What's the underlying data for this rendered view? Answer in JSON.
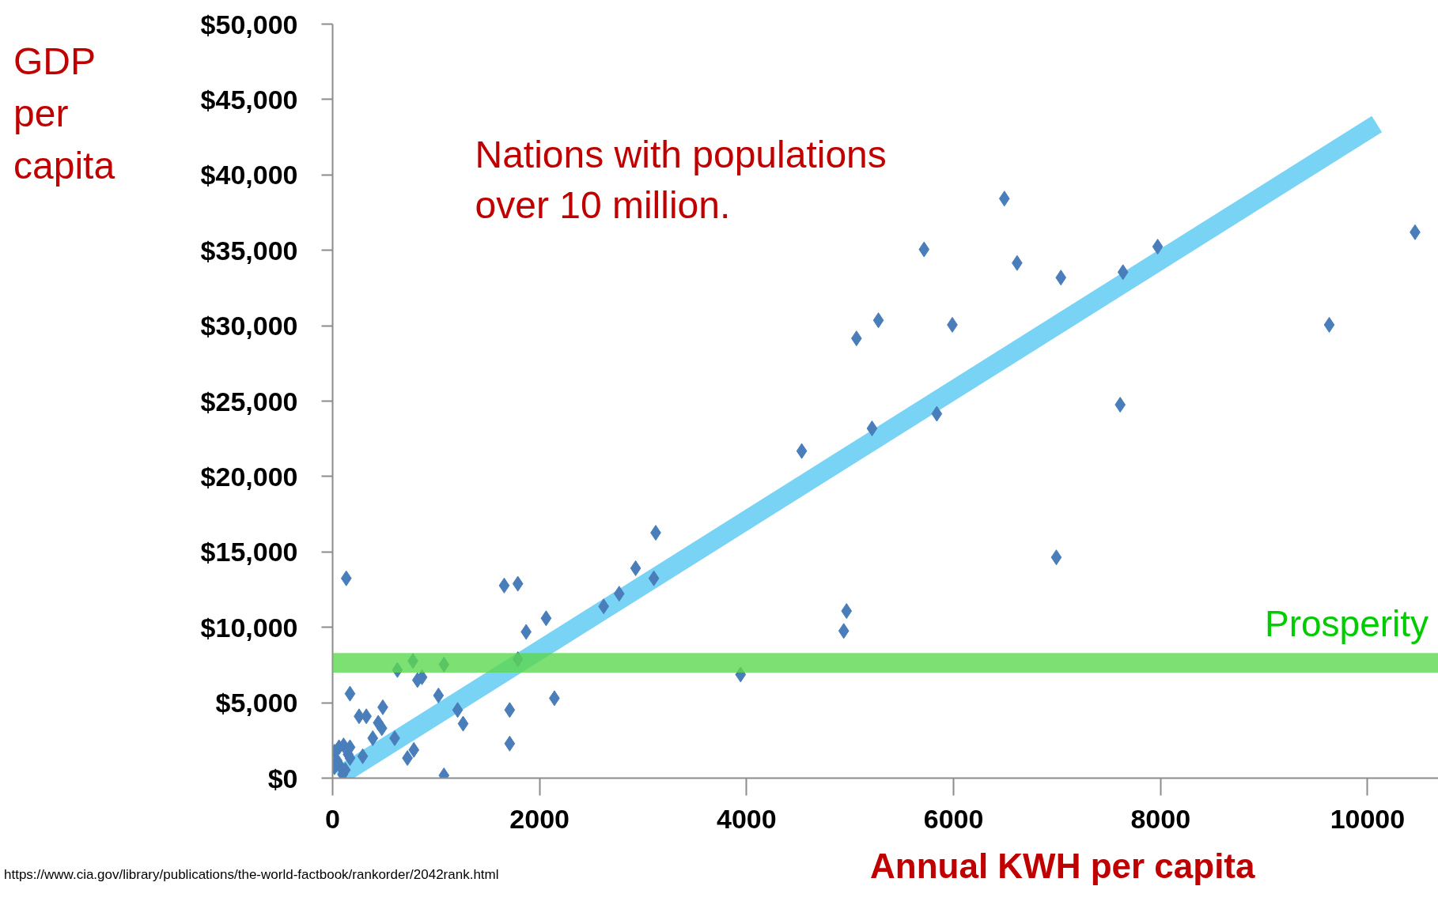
{
  "chart_data": {
    "type": "scatter",
    "xlabel": "Annual KWH per capita",
    "ylabel": "GDP per capita",
    "annotations": [
      "Nations with populations over 10 million.",
      "https://www.cia.gov/library/publications/the-world-factbook/rankorder/2042rank.html"
    ],
    "xlim": [
      0,
      10700
    ],
    "ylim": [
      0,
      50000
    ],
    "xticks": [
      0,
      2000,
      4000,
      6000,
      8000,
      10000
    ],
    "yticks": [
      {
        "value": 0,
        "label": "$0"
      },
      {
        "value": 5000,
        "label": "$5,000"
      },
      {
        "value": 10000,
        "label": "$10,000"
      },
      {
        "value": 15000,
        "label": "$15,000"
      },
      {
        "value": 20000,
        "label": "$20,000"
      },
      {
        "value": 25000,
        "label": "$25,000"
      },
      {
        "value": 30000,
        "label": "$30,000"
      },
      {
        "value": 35000,
        "label": "$35,000"
      },
      {
        "value": 40000,
        "label": "$40,000"
      },
      {
        "value": 45000,
        "label": "$45,000"
      },
      {
        "value": 50000,
        "label": "$50,000"
      }
    ],
    "grid": false,
    "series": [
      {
        "marker": "diamond",
        "color": "#4a7ebb",
        "x": [
          132,
          1658,
          1790,
          3122,
          2928,
          2769,
          2619,
          3104,
          2063,
          1870,
          1790,
          776,
          1076,
          626,
          820,
          864,
          168,
          1023,
          2143,
          485,
          1208,
          1711,
          256,
          326,
          1261,
          441,
          476,
          388,
          600,
          1711,
          785,
          723,
          291,
          1076,
          3942,
          4939,
          4966,
          4533,
          5212,
          5838,
          5062,
          5274,
          5988,
          5715,
          6491,
          6614,
          7037,
          6993,
          7610,
          7637,
          7972,
          9630,
          10459,
          18,
          62,
          106,
          168,
          150,
          44,
          80,
          123,
          18,
          168,
          97
        ],
        "values": [
          13250,
          12770,
          12890,
          16270,
          13920,
          12230,
          11390,
          13250,
          10600,
          9700,
          7890,
          7770,
          7530,
          7170,
          6500,
          6690,
          5600,
          5480,
          5300,
          4700,
          4520,
          4520,
          4100,
          4100,
          3610,
          3670,
          3310,
          2650,
          2650,
          2290,
          1870,
          1330,
          1450,
          180,
          6870,
          9760,
          11080,
          21690,
          23190,
          24160,
          29160,
          30360,
          30060,
          35060,
          38430,
          34160,
          33190,
          14640,
          24760,
          33550,
          35240,
          30060,
          36200,
          1750,
          2050,
          2170,
          2050,
          1570,
          1150,
          720,
          540,
          720,
          1330,
          240
        ]
      },
      {
        "type": "line",
        "color": "#79d3f5",
        "x": [
          60,
          10090
        ],
        "values": [
          120,
          43370
        ]
      }
    ],
    "bands": [
      {
        "axis": "y",
        "from": 7000,
        "to": 8300,
        "label": "Prosperity",
        "color": "#5dd84f"
      }
    ]
  }
}
